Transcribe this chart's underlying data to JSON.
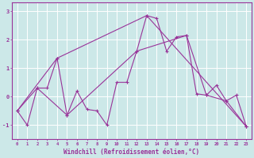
{
  "xlabel": "Windchill (Refroidissement éolien,°C)",
  "background_color": "#cce8e8",
  "grid_color": "#aadddd",
  "line_color": "#993399",
  "xlim": [
    -0.5,
    23.5
  ],
  "ylim": [
    -1.5,
    3.3
  ],
  "yticks": [
    -1,
    0,
    1,
    2,
    3
  ],
  "xticks": [
    0,
    1,
    2,
    3,
    4,
    5,
    6,
    7,
    8,
    9,
    10,
    11,
    12,
    13,
    14,
    15,
    16,
    17,
    18,
    19,
    20,
    21,
    22,
    23
  ],
  "series1": [
    [
      0,
      -0.5
    ],
    [
      1,
      -1.0
    ],
    [
      2,
      0.3
    ],
    [
      3,
      0.3
    ],
    [
      4,
      1.35
    ],
    [
      5,
      -0.65
    ],
    [
      6,
      0.2
    ],
    [
      7,
      -0.45
    ],
    [
      8,
      -0.5
    ],
    [
      9,
      -1.0
    ],
    [
      10,
      0.5
    ],
    [
      11,
      0.5
    ],
    [
      12,
      1.6
    ],
    [
      13,
      2.85
    ],
    [
      14,
      2.75
    ],
    [
      15,
      1.6
    ],
    [
      16,
      2.1
    ],
    [
      17,
      2.15
    ],
    [
      18,
      0.1
    ],
    [
      19,
      0.05
    ],
    [
      20,
      0.4
    ],
    [
      21,
      -0.15
    ],
    [
      22,
      0.05
    ],
    [
      23,
      -1.05
    ]
  ],
  "series2": [
    [
      0,
      -0.5
    ],
    [
      4,
      1.35
    ],
    [
      13,
      2.85
    ],
    [
      23,
      -1.05
    ]
  ],
  "series3": [
    [
      0,
      -0.5
    ],
    [
      2,
      0.3
    ],
    [
      5,
      -0.65
    ],
    [
      12,
      1.6
    ],
    [
      17,
      2.15
    ],
    [
      19,
      0.05
    ],
    [
      21,
      -0.15
    ],
    [
      23,
      -1.05
    ]
  ]
}
